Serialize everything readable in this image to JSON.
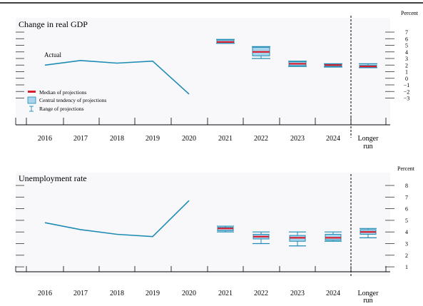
{
  "colors": {
    "line": "#1f8cb4",
    "box_fill": "#a7d3ec",
    "box_stroke": "#1f8cb4",
    "median": "#d81e2c",
    "axis": "#000000",
    "panel_bg": "#f8f8fb"
  },
  "chart_data": [
    {
      "type": "line",
      "title": "Change in real GDP",
      "unit": "Percent",
      "ylim": [
        -3,
        7
      ],
      "yticks": [
        "7",
        "6",
        "5",
        "4",
        "3",
        "2",
        "1",
        "0",
        "−1",
        "−2",
        "−3"
      ],
      "categories": [
        "2016",
        "2017",
        "2018",
        "2019",
        "2020",
        "2021",
        "2022",
        "2023",
        "2024",
        "Longer run"
      ],
      "actual": {
        "label": "Actual",
        "x": [
          "2016",
          "2017",
          "2018",
          "2019",
          "2020"
        ],
        "values": [
          2.0,
          2.7,
          2.3,
          2.6,
          -2.4
        ]
      },
      "projections": [
        {
          "x": "2021",
          "range": [
            5.3,
            5.9
          ],
          "central": [
            5.3,
            5.8
          ],
          "median": 5.5
        },
        {
          "x": "2022",
          "range": [
            3.0,
            4.8
          ],
          "central": [
            3.4,
            4.7
          ],
          "median": 4.0
        },
        {
          "x": "2023",
          "range": [
            1.8,
            2.6
          ],
          "central": [
            1.9,
            2.5
          ],
          "median": 2.2
        },
        {
          "x": "2024",
          "range": [
            1.7,
            2.2
          ],
          "central": [
            1.8,
            2.1
          ],
          "median": 2.0
        },
        {
          "x": "Longer run",
          "range": [
            1.6,
            2.2
          ],
          "central": [
            1.7,
            2.0
          ],
          "median": 1.8
        }
      ],
      "legend": [
        "Median of projections",
        "Central tendency of projections",
        "Range of projections"
      ]
    },
    {
      "type": "line",
      "title": "Unemployment rate",
      "unit": "Percent",
      "ylim": [
        0,
        9
      ],
      "yticks": [
        "8",
        "7",
        "6",
        "5",
        "4",
        "3",
        "2",
        "1"
      ],
      "categories": [
        "2016",
        "2017",
        "2018",
        "2019",
        "2020",
        "2021",
        "2022",
        "2023",
        "2024",
        "Longer run"
      ],
      "actual": {
        "label": "",
        "x": [
          "2016",
          "2017",
          "2018",
          "2019",
          "2020"
        ],
        "values": [
          4.8,
          4.2,
          3.8,
          3.6,
          6.7
        ]
      },
      "projections": [
        {
          "x": "2021",
          "range": [
            4.0,
            4.5
          ],
          "central": [
            4.1,
            4.4
          ],
          "median": 4.3
        },
        {
          "x": "2022",
          "range": [
            3.0,
            4.0
          ],
          "central": [
            3.4,
            3.8
          ],
          "median": 3.6
        },
        {
          "x": "2023",
          "range": [
            2.8,
            4.0
          ],
          "central": [
            3.2,
            3.7
          ],
          "median": 3.5
        },
        {
          "x": "2024",
          "range": [
            3.2,
            4.0
          ],
          "central": [
            3.3,
            3.8
          ],
          "median": 3.5
        },
        {
          "x": "Longer run",
          "range": [
            3.5,
            4.3
          ],
          "central": [
            3.8,
            4.2
          ],
          "median": 4.0
        }
      ]
    }
  ]
}
